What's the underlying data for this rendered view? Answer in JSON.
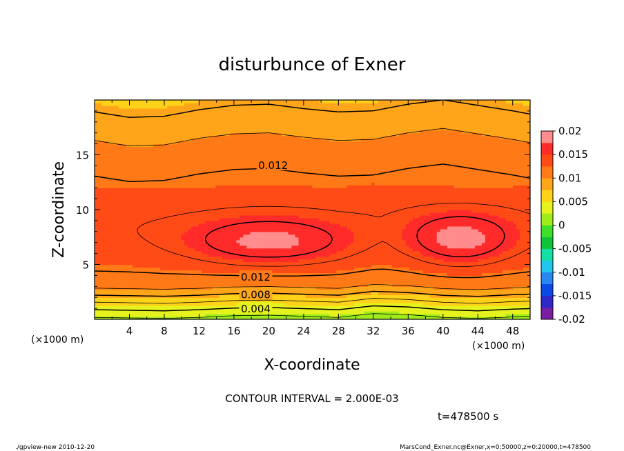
{
  "chart_data": {
    "type": "heatmap",
    "title": "disturbunce of Exner",
    "xlabel": "X-coordinate",
    "ylabel": "Z-coordinate",
    "x_unit_left": "(×1000 m)",
    "x_unit_right": "(×1000 m)",
    "xlim": [
      0,
      50
    ],
    "ylim": [
      0,
      20
    ],
    "x_ticks": [
      4,
      8,
      12,
      16,
      20,
      24,
      28,
      32,
      36,
      40,
      44,
      48
    ],
    "y_ticks": [
      5,
      10,
      15
    ],
    "grid": false,
    "legend": "right",
    "colorbar": {
      "labels": [
        "0.02",
        "0.015",
        "0.01",
        "0.005",
        "0",
        "-0.005",
        "-0.01",
        "-0.015",
        "-0.02"
      ],
      "min": -0.02,
      "max": 0.02,
      "step": 0.0025
    },
    "contour_labels": [
      {
        "text": "0.012",
        "x": 20.5,
        "z": 14.1
      },
      {
        "text": "0.012",
        "x": 18.5,
        "z": 3.9
      },
      {
        "text": "0.008",
        "x": 18.5,
        "z": 2.3
      },
      {
        "text": "0.004",
        "x": 18.5,
        "z": 1.0
      }
    ],
    "field_profiles": {
      "x": [
        0,
        4,
        8,
        12,
        16,
        20,
        24,
        28,
        32,
        36,
        40,
        44,
        48,
        50
      ],
      "bottom_z": [
        0,
        0.7,
        1.4,
        2.2,
        3.0,
        4.6
      ],
      "bottom_v": [
        0.0015,
        0.0035,
        0.0055,
        0.008,
        0.0105,
        0.0122
      ],
      "top_z": [
        12.5,
        15.0,
        16.8,
        18.0,
        19.0,
        20.0
      ],
      "top_v": [
        0.0122,
        0.0108,
        0.0095,
        0.0085,
        0.0078,
        0.0072
      ]
    }
  },
  "annotations": {
    "contour_interval": "CONTOUR INTERVAL = 2.000E-03",
    "time": "t=478500 s"
  },
  "footer": {
    "left": "./gpview-new  2010-12-20",
    "right": "MarsCond_Exner.nc@Exner,x=0:50000,z=0:20000,t=478500"
  },
  "colors": {
    "background": "#ffffff",
    "contour": "#000000"
  }
}
